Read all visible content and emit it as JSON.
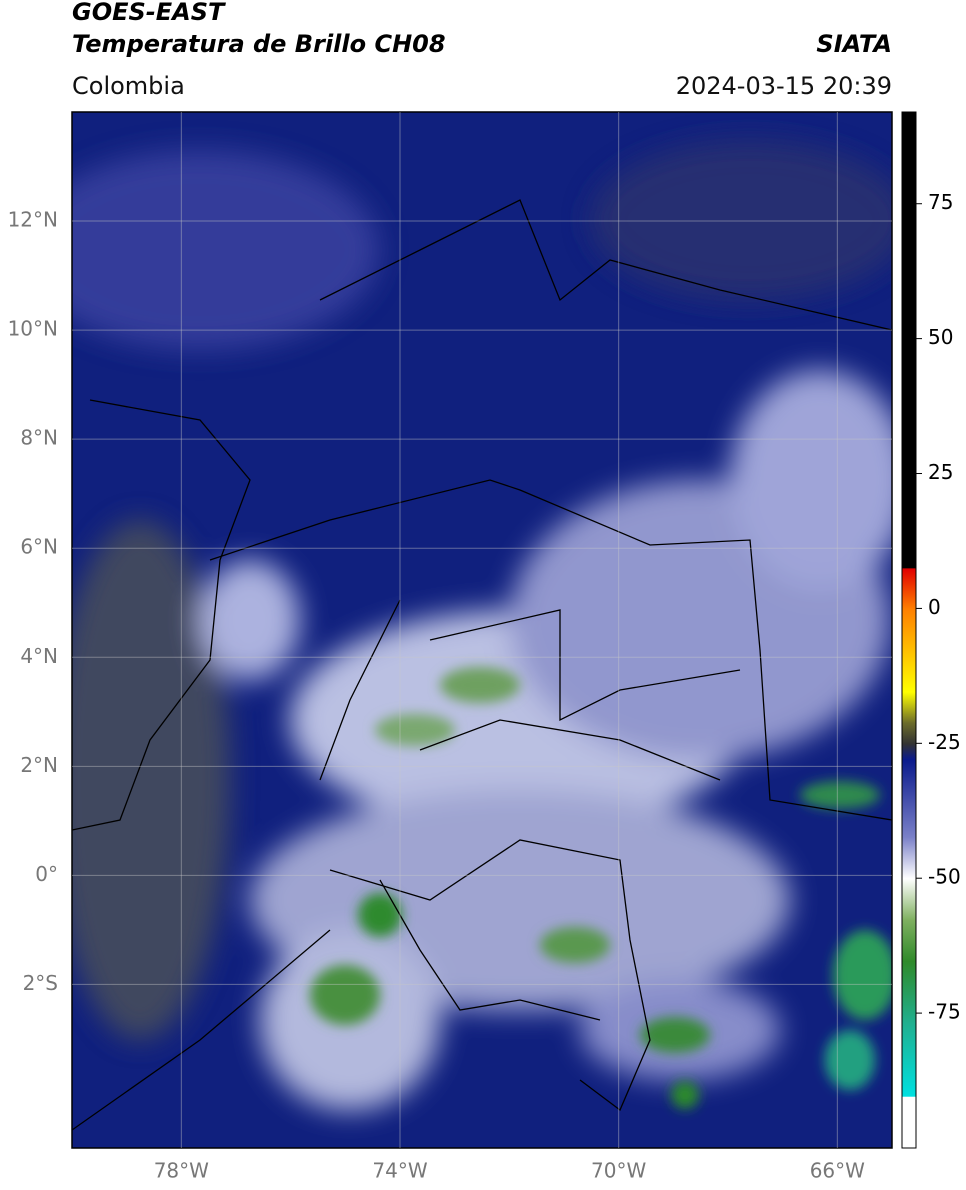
{
  "header": {
    "title": "GOES-EAST",
    "subtitle": "Temperatura de Brillo CH08",
    "source": "SIATA",
    "region": "Colombia",
    "timestamp": "2024-03-15 20:39"
  },
  "map": {
    "lon_range": [
      -80,
      -65
    ],
    "lat_range": [
      -5,
      14
    ],
    "lon_ticks": [
      {
        "value": -78,
        "label": "78°W"
      },
      {
        "value": -74,
        "label": "74°W"
      },
      {
        "value": -70,
        "label": "70°W"
      },
      {
        "value": -66,
        "label": "66°W"
      }
    ],
    "lat_ticks": [
      {
        "value": 12,
        "label": "12°N"
      },
      {
        "value": 10,
        "label": "10°N"
      },
      {
        "value": 8,
        "label": "8°N"
      },
      {
        "value": 6,
        "label": "6°N"
      },
      {
        "value": 4,
        "label": "4°N"
      },
      {
        "value": 2,
        "label": "2°N"
      },
      {
        "value": 0,
        "label": "0°"
      },
      {
        "value": -2,
        "label": "2°S"
      }
    ]
  },
  "colorbar": {
    "range": [
      -100,
      92
    ],
    "ticks": [
      75,
      50,
      25,
      0,
      -25,
      -50,
      -75
    ]
  }
}
